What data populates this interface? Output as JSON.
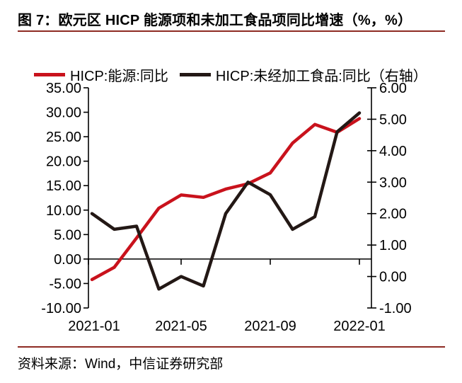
{
  "header": {
    "title": "图 7：欧元区 HICP 能源项和未加工食品项同比增速（%，%）"
  },
  "footer": {
    "source": "资料来源：Wind，中信证券研究部"
  },
  "colors": {
    "energy_line": "#c9121c",
    "food_line": "#231815",
    "rule": "#8e2b23",
    "axis": "#000000"
  },
  "legend": [
    {
      "label": "HICP:能源:同比",
      "color": "#c9121c"
    },
    {
      "label": "HICP:未经加工食品:同比（右轴）",
      "color": "#231815"
    }
  ],
  "chart_data": {
    "type": "line",
    "x": [
      "2021-01",
      "2021-02",
      "2021-03",
      "2021-04",
      "2021-05",
      "2021-06",
      "2021-07",
      "2021-08",
      "2021-09",
      "2021-10",
      "2021-11",
      "2021-12",
      "2022-01"
    ],
    "x_tick_labels": [
      "2021-01",
      "2021-05",
      "2021-09",
      "2022-01"
    ],
    "x_tick_indices": [
      0,
      4,
      8,
      12
    ],
    "series": [
      {
        "name": "HICP:能源:同比",
        "axis": "left",
        "color": "#c9121c",
        "values": [
          -4.2,
          -1.7,
          4.3,
          10.4,
          13.1,
          12.6,
          14.3,
          15.4,
          17.6,
          23.7,
          27.5,
          25.9,
          28.7
        ]
      },
      {
        "name": "HICP:未经加工食品:同比（右轴）",
        "axis": "right",
        "color": "#231815",
        "values": [
          2.0,
          1.5,
          1.6,
          -0.4,
          0.0,
          -0.3,
          2.0,
          3.0,
          2.6,
          1.5,
          1.9,
          4.6,
          5.2
        ]
      }
    ],
    "left_axis": {
      "min": -10,
      "max": 35,
      "step": 5,
      "tick_labels": [
        "35.00",
        "30.00",
        "25.00",
        "20.00",
        "15.00",
        "10.00",
        "5.00",
        "0.00",
        "-5.00",
        "-10.00"
      ]
    },
    "right_axis": {
      "min": -1,
      "max": 6,
      "step": 1,
      "tick_labels": [
        "6.00",
        "5.00",
        "4.00",
        "3.00",
        "2.00",
        "1.00",
        "0.00",
        "-1.00"
      ]
    },
    "grid": false,
    "legend_position": "top"
  }
}
